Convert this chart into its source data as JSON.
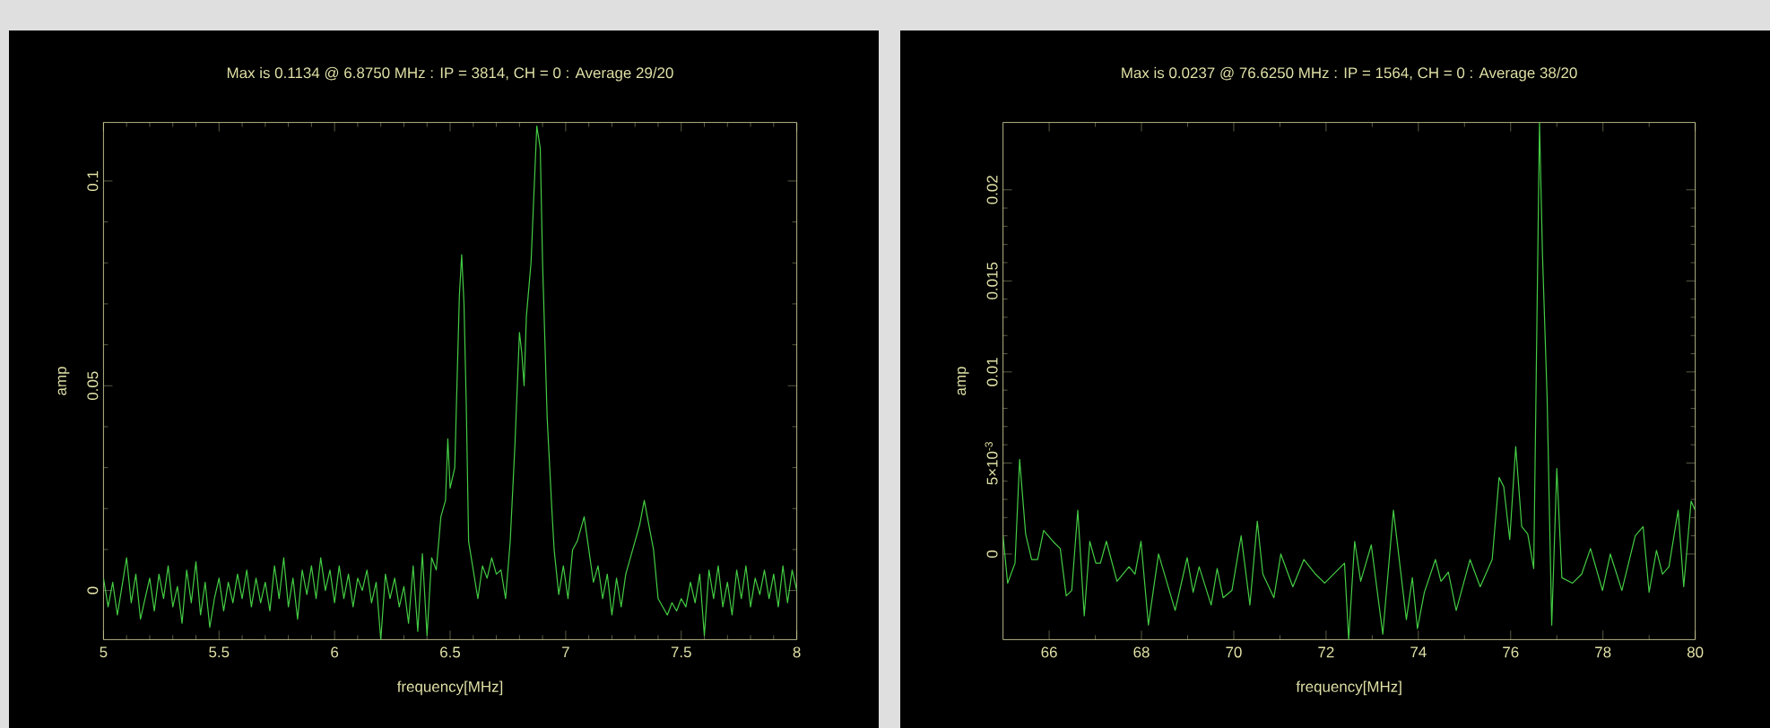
{
  "chart_data": [
    {
      "type": "line",
      "title": "Max is 0.1134 @ 6.8750 MHz : IP = 3814, CH = 0 : Average 29/20",
      "xlabel": "frequency[MHz]",
      "ylabel": "amp",
      "color": "#44cc44",
      "x": [
        5.0,
        5.02,
        5.04,
        5.06,
        5.08,
        5.1,
        5.12,
        5.14,
        5.16,
        5.18,
        5.2,
        5.22,
        5.24,
        5.26,
        5.28,
        5.3,
        5.32,
        5.34,
        5.36,
        5.38,
        5.4,
        5.42,
        5.44,
        5.46,
        5.48,
        5.5,
        5.52,
        5.54,
        5.56,
        5.58,
        5.6,
        5.62,
        5.64,
        5.66,
        5.68,
        5.7,
        5.72,
        5.74,
        5.76,
        5.78,
        5.8,
        5.82,
        5.84,
        5.86,
        5.88,
        5.9,
        5.92,
        5.94,
        5.96,
        5.98,
        6.0,
        6.02,
        6.04,
        6.06,
        6.08,
        6.1,
        6.12,
        6.14,
        6.16,
        6.18,
        6.2,
        6.22,
        6.24,
        6.26,
        6.28,
        6.3,
        6.32,
        6.34,
        6.36,
        6.38,
        6.4,
        6.42,
        6.44,
        6.46,
        6.48,
        6.49,
        6.5,
        6.52,
        6.54,
        6.55,
        6.56,
        6.57,
        6.58,
        6.6,
        6.62,
        6.64,
        6.66,
        6.68,
        6.7,
        6.72,
        6.74,
        6.76,
        6.78,
        6.8,
        6.81,
        6.82,
        6.83,
        6.85,
        6.875,
        6.89,
        6.9,
        6.92,
        6.94,
        6.95,
        6.97,
        6.99,
        7.01,
        7.03,
        7.05,
        7.08,
        7.1,
        7.12,
        7.14,
        7.16,
        7.18,
        7.2,
        7.22,
        7.24,
        7.26,
        7.28,
        7.3,
        7.32,
        7.34,
        7.36,
        7.38,
        7.4,
        7.42,
        7.44,
        7.46,
        7.48,
        7.5,
        7.52,
        7.54,
        7.56,
        7.58,
        7.6,
        7.62,
        7.64,
        7.66,
        7.68,
        7.7,
        7.72,
        7.74,
        7.76,
        7.78,
        7.8,
        7.82,
        7.84,
        7.86,
        7.88,
        7.9,
        7.92,
        7.94,
        7.96,
        7.98,
        8.0
      ],
      "values": [
        0.003,
        -0.004,
        0.002,
        -0.006,
        0.001,
        0.008,
        -0.003,
        0.004,
        -0.007,
        -0.002,
        0.003,
        -0.005,
        0.004,
        -0.002,
        0.006,
        -0.004,
        0.001,
        -0.008,
        0.005,
        -0.003,
        0.007,
        -0.006,
        0.002,
        -0.009,
        -0.002,
        0.003,
        -0.005,
        0.002,
        -0.003,
        0.004,
        -0.002,
        0.005,
        -0.004,
        0.003,
        -0.003,
        0.002,
        -0.005,
        0.006,
        -0.002,
        0.008,
        -0.004,
        0.003,
        -0.007,
        0.005,
        -0.001,
        0.006,
        -0.002,
        0.008,
        0.0,
        0.005,
        -0.003,
        0.006,
        -0.002,
        0.004,
        -0.004,
        0.003,
        0.0,
        0.005,
        -0.003,
        0.002,
        -0.012,
        0.004,
        -0.002,
        0.003,
        -0.004,
        0.001,
        -0.008,
        0.006,
        -0.01,
        0.009,
        -0.011,
        0.008,
        0.005,
        0.018,
        0.022,
        0.037,
        0.025,
        0.03,
        0.072,
        0.082,
        0.07,
        0.045,
        0.012,
        0.005,
        -0.002,
        0.006,
        0.003,
        0.008,
        0.004,
        0.005,
        -0.002,
        0.012,
        0.035,
        0.063,
        0.058,
        0.05,
        0.067,
        0.08,
        0.1134,
        0.108,
        0.08,
        0.042,
        0.02,
        0.01,
        -0.001,
        0.006,
        -0.002,
        0.01,
        0.012,
        0.018,
        0.01,
        0.002,
        0.006,
        -0.002,
        0.004,
        -0.006,
        0.003,
        -0.004,
        0.004,
        0.008,
        0.012,
        0.016,
        0.022,
        0.016,
        0.01,
        -0.002,
        -0.004,
        -0.006,
        -0.003,
        -0.005,
        -0.002,
        -0.004,
        0.002,
        -0.003,
        0.004,
        -0.011,
        0.005,
        -0.002,
        0.006,
        -0.004,
        0.002,
        -0.006,
        0.005,
        -0.002,
        0.006,
        -0.004,
        0.003,
        -0.001,
        0.005,
        -0.002,
        0.004,
        -0.004,
        0.006,
        -0.003,
        0.005,
        0.0
      ],
      "xlim": [
        5,
        8
      ],
      "ylim": [
        -0.012,
        0.1143
      ],
      "xticks": [
        5,
        5.5,
        6,
        6.5,
        7,
        7.5,
        8
      ],
      "yticks": [
        0,
        0.05,
        0.1
      ]
    },
    {
      "type": "line",
      "title": "Max is 0.0237 @ 76.6250 MHz : IP = 1564, CH = 0 : Average 38/20",
      "xlabel": "frequency[MHz]",
      "ylabel": "amp",
      "color": "#44cc44",
      "x": [
        65.0,
        65.1,
        65.26,
        65.36,
        65.49,
        65.62,
        65.75,
        65.88,
        66.08,
        66.24,
        66.37,
        66.49,
        66.62,
        66.76,
        66.88,
        67.01,
        67.11,
        67.24,
        67.47,
        67.73,
        67.86,
        67.99,
        68.15,
        68.37,
        68.73,
        68.99,
        69.12,
        69.25,
        69.51,
        69.64,
        69.77,
        69.96,
        70.16,
        70.35,
        70.51,
        70.63,
        70.87,
        71.02,
        71.28,
        71.52,
        71.77,
        71.97,
        72.4,
        72.49,
        72.62,
        72.75,
        72.98,
        73.23,
        73.46,
        73.74,
        73.87,
        73.98,
        74.13,
        74.37,
        74.49,
        74.65,
        74.82,
        75.12,
        75.34,
        75.6,
        75.75,
        75.85,
        75.98,
        76.11,
        76.24,
        76.37,
        76.5,
        76.625,
        76.69,
        76.79,
        76.89,
        77.0,
        77.11,
        77.34,
        77.54,
        77.73,
        77.99,
        78.16,
        78.41,
        78.7,
        78.87,
        79.0,
        79.16,
        79.29,
        79.43,
        79.63,
        79.75,
        79.91,
        80.0
      ],
      "values": [
        0.001,
        -0.0016,
        -0.0005,
        0.0052,
        0.0011,
        -0.0003,
        -0.0003,
        0.0013,
        0.0007,
        0.0003,
        -0.0023,
        -0.002,
        0.0024,
        -0.0034,
        0.0007,
        -0.0005,
        -0.0005,
        0.0007,
        -0.0015,
        -0.0007,
        -0.0011,
        0.0007,
        -0.0039,
        0.0,
        -0.0031,
        -0.0002,
        -0.0021,
        -0.0007,
        -0.0028,
        -0.0008,
        -0.0024,
        -0.002,
        0.001,
        -0.0028,
        0.0018,
        -0.0011,
        -0.0024,
        0.0,
        -0.0018,
        -0.0003,
        -0.0011,
        -0.0016,
        -0.0005,
        -0.0047,
        0.0007,
        -0.0015,
        0.0005,
        -0.0044,
        0.0024,
        -0.0036,
        -0.0013,
        -0.0041,
        -0.0021,
        -0.0003,
        -0.0015,
        -0.001,
        -0.0031,
        -0.0003,
        -0.0018,
        -0.0003,
        0.0042,
        0.0037,
        0.0008,
        0.0059,
        0.0015,
        0.0011,
        -0.0008,
        0.0237,
        0.0164,
        0.0086,
        -0.0039,
        0.0047,
        -0.0013,
        -0.0016,
        -0.0011,
        0.0003,
        -0.002,
        0.0,
        -0.002,
        0.001,
        0.0015,
        -0.0021,
        0.0002,
        -0.0011,
        -0.0007,
        0.0024,
        -0.0018,
        0.0029,
        0.0024
      ],
      "xlim": [
        65,
        80
      ],
      "ylim": [
        -0.0047,
        0.0237
      ],
      "xticks": [
        66,
        68,
        70,
        72,
        74,
        76,
        78,
        80
      ],
      "yticks": [
        0,
        {
          "value": 0.005,
          "label": "5×10$^{-3}$"
        },
        0.01,
        0.015,
        0.02
      ]
    }
  ]
}
